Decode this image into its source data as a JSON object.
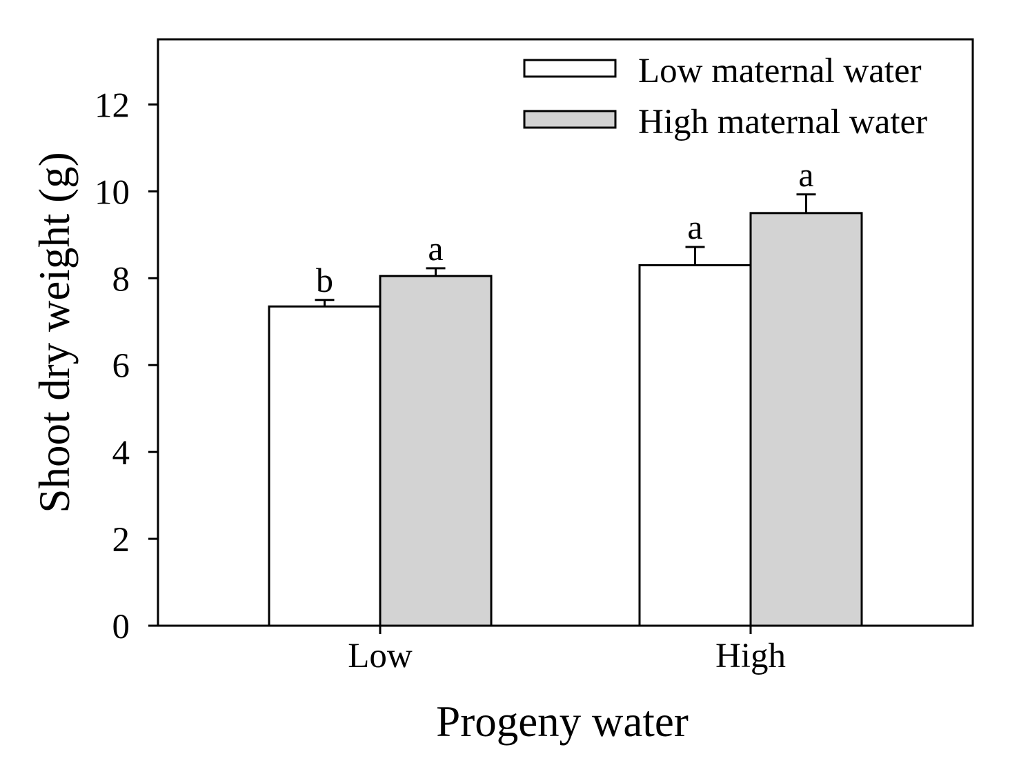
{
  "chart_data": {
    "type": "bar",
    "xlabel": "Progeny water",
    "ylabel": "Shoot dry weight (g)",
    "ylim": [
      0,
      13.5
    ],
    "yticks": [
      0,
      2,
      4,
      6,
      8,
      10,
      12
    ],
    "ytick_labels": [
      "0",
      "2",
      "4",
      "6",
      "8",
      "10",
      "12"
    ],
    "categories": [
      "Low",
      "High"
    ],
    "series": [
      {
        "name": "Low maternal water",
        "color": "#ffffff",
        "values": [
          7.35,
          8.3
        ],
        "errors": [
          0.15,
          0.42
        ],
        "letters": [
          "b",
          "a"
        ]
      },
      {
        "name": "High maternal water",
        "color": "#d3d3d3",
        "values": [
          8.05,
          9.5
        ],
        "errors": [
          0.18,
          0.43
        ],
        "letters": [
          "a",
          "a"
        ]
      }
    ],
    "legend_position": "top-right",
    "grid": false
  }
}
